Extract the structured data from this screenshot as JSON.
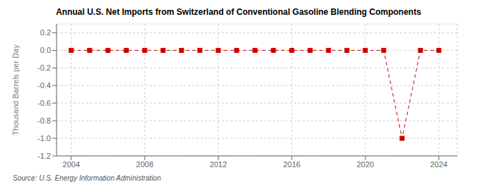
{
  "chart_data": {
    "type": "line",
    "title": "Annual U.S. Net Imports from Switzerland of Conventional Gasoline Blending Components",
    "ylabel": "Thousand Barrels per Day",
    "annotations": [
      "Source: U.S. Energy Information Administration"
    ],
    "x": [
      2004,
      2005,
      2006,
      2007,
      2008,
      2009,
      2010,
      2011,
      2012,
      2013,
      2014,
      2015,
      2016,
      2017,
      2018,
      2019,
      2020,
      2021,
      2022,
      2023,
      2024
    ],
    "values": [
      0.0,
      0.0,
      0.0,
      0.0,
      0.0,
      0.0,
      0.0,
      0.0,
      0.0,
      0.0,
      0.0,
      0.0,
      0.0,
      0.0,
      0.0,
      0.0,
      0.0,
      0.0,
      -1.0,
      0.0,
      0.0
    ],
    "color": "#cc0000",
    "marker": "square",
    "line_style": "dashed",
    "grid": true,
    "xlim": [
      2003.2,
      2025.0
    ],
    "ylim": [
      -1.2,
      0.3
    ],
    "xticks": [
      2004,
      2008,
      2012,
      2016,
      2020,
      2024
    ],
    "yticks": [
      0.2,
      {
        "value": 0.0,
        "label": "0.0"
      },
      -0.2,
      -0.4,
      -0.6,
      -0.8,
      {
        "value": -1.0,
        "label": "-1.0"
      },
      -1.2
    ]
  }
}
